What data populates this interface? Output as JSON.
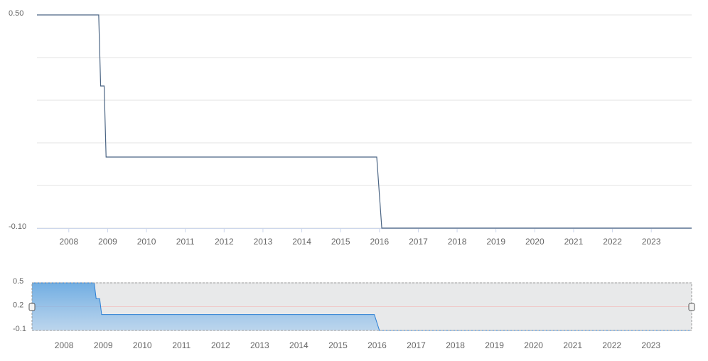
{
  "chart_data": {
    "type": "line",
    "x": [
      2007.18,
      2008.77,
      2008.82,
      2008.91,
      2008.96,
      2015.93,
      2016.06,
      2024.04
    ],
    "series": [
      {
        "color": "#4b6584",
        "values": [
          0.5,
          0.5,
          0.3,
          0.3,
          0.1,
          0.1,
          -0.1,
          -0.1
        ]
      }
    ],
    "xlim": [
      2007.18,
      2024.04
    ],
    "xticks": [
      2008,
      2009,
      2010,
      2011,
      2012,
      2013,
      2014,
      2015,
      2016,
      2017,
      2018,
      2019,
      2020,
      2021,
      2022,
      2023
    ],
    "ylim": [
      -0.1,
      0.5
    ],
    "yticks": [
      {
        "value": 0.5,
        "label": "0.50"
      },
      {
        "value": -0.1,
        "label": "-0.10"
      }
    ],
    "ygrid": [
      0.5,
      0.38,
      0.26,
      0.14,
      0.02,
      -0.1
    ],
    "grid": true,
    "navigator": {
      "color": "#2b7fd4",
      "ylim": [
        -0.1,
        0.5
      ],
      "yticks": [
        0.5,
        0.2,
        -0.1
      ]
    }
  }
}
